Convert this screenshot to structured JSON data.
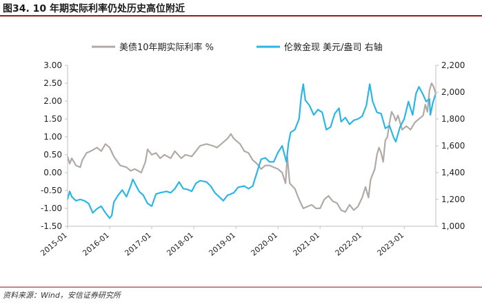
{
  "page": {
    "title": "图34. 10 年期实际利率仍处历史高位附近",
    "source": "资料来源：Wind，安信证券研究所"
  },
  "chart_data": {
    "type": "line",
    "title": "图34. 10 年期实际利率仍处历史高位附近",
    "x_tick_labels": [
      "2015-01",
      "2016-01",
      "2017-01",
      "2018-01",
      "2019-01",
      "2020-01",
      "2021-01",
      "2022-01",
      "2023-01"
    ],
    "x_range": [
      2015.0,
      2023.75
    ],
    "y_left": {
      "ylim": [
        -1.5,
        3.0
      ],
      "ticks": [
        -1.5,
        -1.0,
        -0.5,
        0.0,
        0.5,
        1.0,
        1.5,
        2.0,
        2.5,
        3.0
      ],
      "tick_labels": [
        "-1.50",
        "-1.00",
        "-0.50",
        "0.00",
        "0.50",
        "1.00",
        "1.50",
        "2.00",
        "2.50",
        "3.00"
      ]
    },
    "y_right": {
      "ylim": [
        1000,
        2200
      ],
      "ticks": [
        1000,
        1200,
        1400,
        1600,
        1800,
        2000,
        2200
      ],
      "tick_labels": [
        "1,000",
        "1,200",
        "1,400",
        "1,600",
        "1,800",
        "2,000",
        "2,200"
      ]
    },
    "legend": [
      {
        "name": "美债10年期实际利率 %",
        "color": "#b0a9a5"
      },
      {
        "name": "伦敦金现 美元/盎司 右轴",
        "color": "#29b6e6"
      }
    ],
    "series": [
      {
        "name": "美债10年期实际利率 %",
        "axis": "left",
        "color": "#b0a9a5",
        "points": [
          [
            2015.0,
            0.45
          ],
          [
            2015.05,
            0.25
          ],
          [
            2015.1,
            0.4
          ],
          [
            2015.2,
            0.2
          ],
          [
            2015.3,
            0.15
          ],
          [
            2015.35,
            0.35
          ],
          [
            2015.45,
            0.55
          ],
          [
            2015.55,
            0.6
          ],
          [
            2015.7,
            0.7
          ],
          [
            2015.8,
            0.6
          ],
          [
            2015.9,
            0.8
          ],
          [
            2016.0,
            0.7
          ],
          [
            2016.1,
            0.45
          ],
          [
            2016.25,
            0.2
          ],
          [
            2016.4,
            0.15
          ],
          [
            2016.5,
            0.05
          ],
          [
            2016.6,
            0.1
          ],
          [
            2016.75,
            0.0
          ],
          [
            2016.85,
            0.3
          ],
          [
            2016.9,
            0.65
          ],
          [
            2017.0,
            0.5
          ],
          [
            2017.1,
            0.55
          ],
          [
            2017.2,
            0.4
          ],
          [
            2017.3,
            0.5
          ],
          [
            2017.45,
            0.4
          ],
          [
            2017.55,
            0.6
          ],
          [
            2017.7,
            0.4
          ],
          [
            2017.8,
            0.5
          ],
          [
            2017.95,
            0.45
          ],
          [
            2018.05,
            0.6
          ],
          [
            2018.15,
            0.75
          ],
          [
            2018.3,
            0.8
          ],
          [
            2018.45,
            0.75
          ],
          [
            2018.55,
            0.7
          ],
          [
            2018.7,
            0.85
          ],
          [
            2018.8,
            0.95
          ],
          [
            2018.88,
            1.08
          ],
          [
            2018.95,
            0.95
          ],
          [
            2019.0,
            0.9
          ],
          [
            2019.1,
            0.8
          ],
          [
            2019.2,
            0.6
          ],
          [
            2019.3,
            0.55
          ],
          [
            2019.4,
            0.35
          ],
          [
            2019.5,
            0.25
          ],
          [
            2019.6,
            0.1
          ],
          [
            2019.7,
            0.2
          ],
          [
            2019.8,
            0.2
          ],
          [
            2019.9,
            0.15
          ],
          [
            2020.0,
            0.1
          ],
          [
            2020.1,
            0.0
          ],
          [
            2020.18,
            -0.3
          ],
          [
            2020.22,
            0.45
          ],
          [
            2020.28,
            -0.3
          ],
          [
            2020.4,
            -0.45
          ],
          [
            2020.5,
            -0.75
          ],
          [
            2020.6,
            -1.0
          ],
          [
            2020.7,
            -0.95
          ],
          [
            2020.8,
            -0.9
          ],
          [
            2020.9,
            -1.0
          ],
          [
            2021.0,
            -1.0
          ],
          [
            2021.1,
            -0.75
          ],
          [
            2021.2,
            -0.65
          ],
          [
            2021.3,
            -0.8
          ],
          [
            2021.4,
            -0.85
          ],
          [
            2021.5,
            -1.05
          ],
          [
            2021.6,
            -1.1
          ],
          [
            2021.7,
            -0.9
          ],
          [
            2021.8,
            -1.05
          ],
          [
            2021.9,
            -0.95
          ],
          [
            2022.0,
            -0.7
          ],
          [
            2022.08,
            -0.4
          ],
          [
            2022.15,
            -0.7
          ],
          [
            2022.2,
            -0.2
          ],
          [
            2022.3,
            0.1
          ],
          [
            2022.35,
            0.5
          ],
          [
            2022.4,
            0.7
          ],
          [
            2022.45,
            0.55
          ],
          [
            2022.5,
            0.3
          ],
          [
            2022.55,
            0.9
          ],
          [
            2022.6,
            1.0
          ],
          [
            2022.65,
            1.4
          ],
          [
            2022.7,
            1.7
          ],
          [
            2022.75,
            1.6
          ],
          [
            2022.8,
            1.45
          ],
          [
            2022.85,
            1.6
          ],
          [
            2022.95,
            1.2
          ],
          [
            2023.05,
            1.3
          ],
          [
            2023.15,
            1.2
          ],
          [
            2023.25,
            1.4
          ],
          [
            2023.35,
            1.5
          ],
          [
            2023.45,
            1.6
          ],
          [
            2023.5,
            1.9
          ],
          [
            2023.55,
            1.7
          ],
          [
            2023.6,
            2.3
          ],
          [
            2023.65,
            2.5
          ],
          [
            2023.7,
            2.4
          ],
          [
            2023.75,
            2.2
          ]
        ]
      },
      {
        "name": "伦敦金现 美元/盎司 右轴",
        "axis": "right",
        "color": "#29b6e6",
        "points": [
          [
            2015.0,
            1200
          ],
          [
            2015.05,
            1260
          ],
          [
            2015.1,
            1220
          ],
          [
            2015.2,
            1190
          ],
          [
            2015.3,
            1200
          ],
          [
            2015.4,
            1190
          ],
          [
            2015.5,
            1170
          ],
          [
            2015.6,
            1100
          ],
          [
            2015.7,
            1130
          ],
          [
            2015.8,
            1150
          ],
          [
            2015.9,
            1100
          ],
          [
            2016.0,
            1060
          ],
          [
            2016.05,
            1080
          ],
          [
            2016.1,
            1180
          ],
          [
            2016.2,
            1230
          ],
          [
            2016.3,
            1270
          ],
          [
            2016.4,
            1220
          ],
          [
            2016.5,
            1300
          ],
          [
            2016.55,
            1350
          ],
          [
            2016.6,
            1320
          ],
          [
            2016.7,
            1260
          ],
          [
            2016.8,
            1230
          ],
          [
            2016.9,
            1170
          ],
          [
            2017.0,
            1150
          ],
          [
            2017.1,
            1240
          ],
          [
            2017.2,
            1250
          ],
          [
            2017.35,
            1260
          ],
          [
            2017.45,
            1250
          ],
          [
            2017.55,
            1280
          ],
          [
            2017.65,
            1330
          ],
          [
            2017.75,
            1280
          ],
          [
            2017.85,
            1275
          ],
          [
            2017.95,
            1260
          ],
          [
            2018.05,
            1320
          ],
          [
            2018.15,
            1340
          ],
          [
            2018.3,
            1330
          ],
          [
            2018.4,
            1300
          ],
          [
            2018.5,
            1250
          ],
          [
            2018.6,
            1220
          ],
          [
            2018.7,
            1190
          ],
          [
            2018.8,
            1230
          ],
          [
            2018.95,
            1250
          ],
          [
            2019.05,
            1290
          ],
          [
            2019.2,
            1300
          ],
          [
            2019.3,
            1280
          ],
          [
            2019.4,
            1300
          ],
          [
            2019.5,
            1400
          ],
          [
            2019.6,
            1500
          ],
          [
            2019.7,
            1510
          ],
          [
            2019.8,
            1480
          ],
          [
            2019.9,
            1480
          ],
          [
            2020.0,
            1550
          ],
          [
            2020.1,
            1600
          ],
          [
            2020.2,
            1480
          ],
          [
            2020.25,
            1620
          ],
          [
            2020.3,
            1700
          ],
          [
            2020.4,
            1720
          ],
          [
            2020.5,
            1800
          ],
          [
            2020.55,
            1960
          ],
          [
            2020.6,
            2060
          ],
          [
            2020.65,
            1940
          ],
          [
            2020.75,
            1900
          ],
          [
            2020.85,
            1830
          ],
          [
            2020.95,
            1870
          ],
          [
            2021.05,
            1850
          ],
          [
            2021.15,
            1720
          ],
          [
            2021.25,
            1740
          ],
          [
            2021.35,
            1840
          ],
          [
            2021.45,
            1880
          ],
          [
            2021.5,
            1780
          ],
          [
            2021.6,
            1810
          ],
          [
            2021.7,
            1760
          ],
          [
            2021.8,
            1790
          ],
          [
            2021.9,
            1800
          ],
          [
            2022.0,
            1820
          ],
          [
            2022.1,
            1900
          ],
          [
            2022.18,
            2060
          ],
          [
            2022.25,
            1930
          ],
          [
            2022.35,
            1850
          ],
          [
            2022.45,
            1840
          ],
          [
            2022.55,
            1730
          ],
          [
            2022.65,
            1750
          ],
          [
            2022.75,
            1660
          ],
          [
            2022.8,
            1630
          ],
          [
            2022.9,
            1740
          ],
          [
            2023.0,
            1800
          ],
          [
            2023.1,
            1930
          ],
          [
            2023.2,
            1830
          ],
          [
            2023.28,
            1990
          ],
          [
            2023.35,
            2040
          ],
          [
            2023.45,
            1980
          ],
          [
            2023.52,
            1930
          ],
          [
            2023.6,
            1950
          ],
          [
            2023.62,
            1830
          ],
          [
            2023.68,
            1920
          ],
          [
            2023.75,
            1990
          ]
        ]
      }
    ]
  }
}
